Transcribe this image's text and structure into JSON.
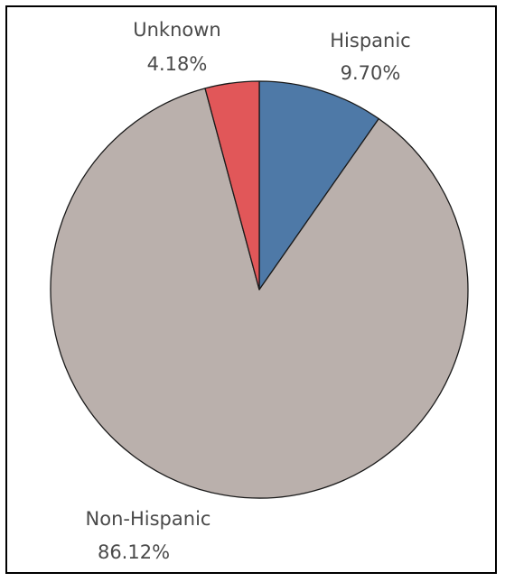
{
  "chart_data": {
    "type": "pie",
    "slices": [
      {
        "label": "Hispanic",
        "value": 9.7,
        "value_label": "9.70%",
        "color": "#4e79a7"
      },
      {
        "label": "Non-Hispanic",
        "value": 86.12,
        "value_label": "86.12%",
        "color": "#bab0ac"
      },
      {
        "label": "Unknown",
        "value": 4.18,
        "value_label": "4.18%",
        "color": "#e15759"
      }
    ],
    "start": "12 o'clock",
    "direction": "clockwise",
    "legend": "none",
    "labels": "outside, category name above percentage"
  }
}
